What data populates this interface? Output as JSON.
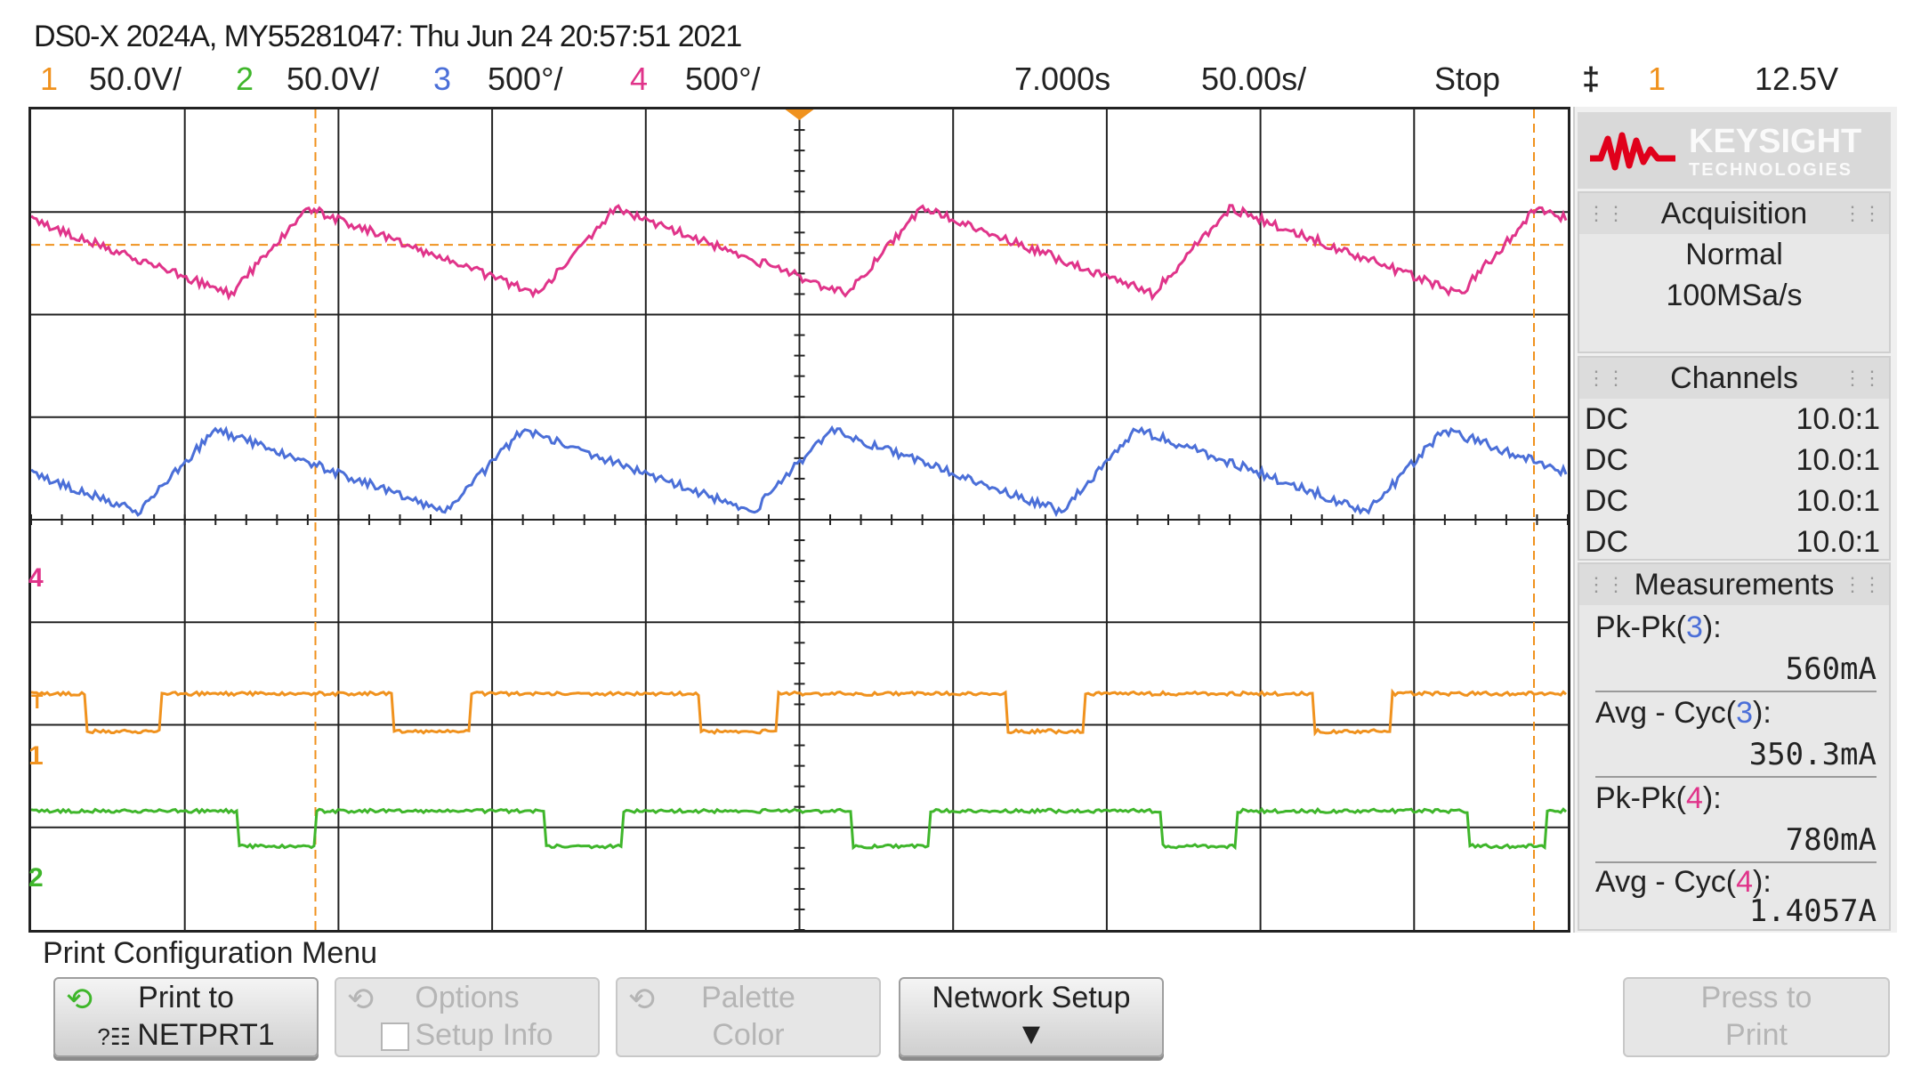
{
  "title_line": "DS0-X 2024A, MY55281047: Thu Jun 24 20:57:51 2021",
  "header": {
    "ch1": {
      "num": "1",
      "scale": "50.0V/"
    },
    "ch2": {
      "num": "2",
      "scale": "50.0V/"
    },
    "ch3": {
      "num": "3",
      "scale": "500°/"
    },
    "ch4": {
      "num": "4",
      "scale": "500°/"
    },
    "delay": "7.000s",
    "timebase": "50.00s/",
    "run_state": "Stop",
    "trigger_icon": "‡",
    "trigger_source": "1",
    "trigger_level": "12.5V"
  },
  "colors": {
    "ch1": "#f0921e",
    "ch2": "#3fb62b",
    "ch3": "#4b6fd8",
    "ch4": "#e0348a",
    "grid": "#222222"
  },
  "ground_markers": {
    "ch4": "4",
    "ch1": "1",
    "ch2": "2",
    "trig": "T"
  },
  "logo": {
    "line1": "KEYSIGHT",
    "line2": "TECHNOLOGIES"
  },
  "acquisition": {
    "title": "Acquisition",
    "mode": "Normal",
    "rate": "100MSa/s"
  },
  "channels": {
    "title": "Channels",
    "rows": [
      {
        "coupling": "DC",
        "probe": "10.0:1"
      },
      {
        "coupling": "DC",
        "probe": "10.0:1"
      },
      {
        "coupling": "DC",
        "probe": "10.0:1"
      },
      {
        "coupling": "DC",
        "probe": "10.0:1"
      }
    ]
  },
  "measurements": {
    "title": "Measurements",
    "items": [
      {
        "label_prefix": "Pk-Pk(",
        "src": "3",
        "label_suffix": "):",
        "value": "560mA"
      },
      {
        "label_prefix": "Avg - Cyc(",
        "src": "3",
        "label_suffix": "):",
        "value": "350.3mA"
      },
      {
        "label_prefix": "Pk-Pk(",
        "src": "4",
        "label_suffix": "):",
        "value": "780mA"
      },
      {
        "label_prefix": "Avg - Cyc(",
        "src": "4",
        "label_suffix": "):",
        "value": "1.4057A"
      }
    ]
  },
  "menu": {
    "title": "Print Configuration Menu",
    "print_to": {
      "line1": "Print to",
      "line2": "NETPRT1"
    },
    "options": {
      "line1": "Options",
      "line2": "Setup Info"
    },
    "palette": {
      "line1": "Palette",
      "line2": "Color"
    },
    "network": {
      "line1": "Network Setup"
    },
    "press_print": {
      "line1": "Press to",
      "line2": "Print"
    }
  }
}
